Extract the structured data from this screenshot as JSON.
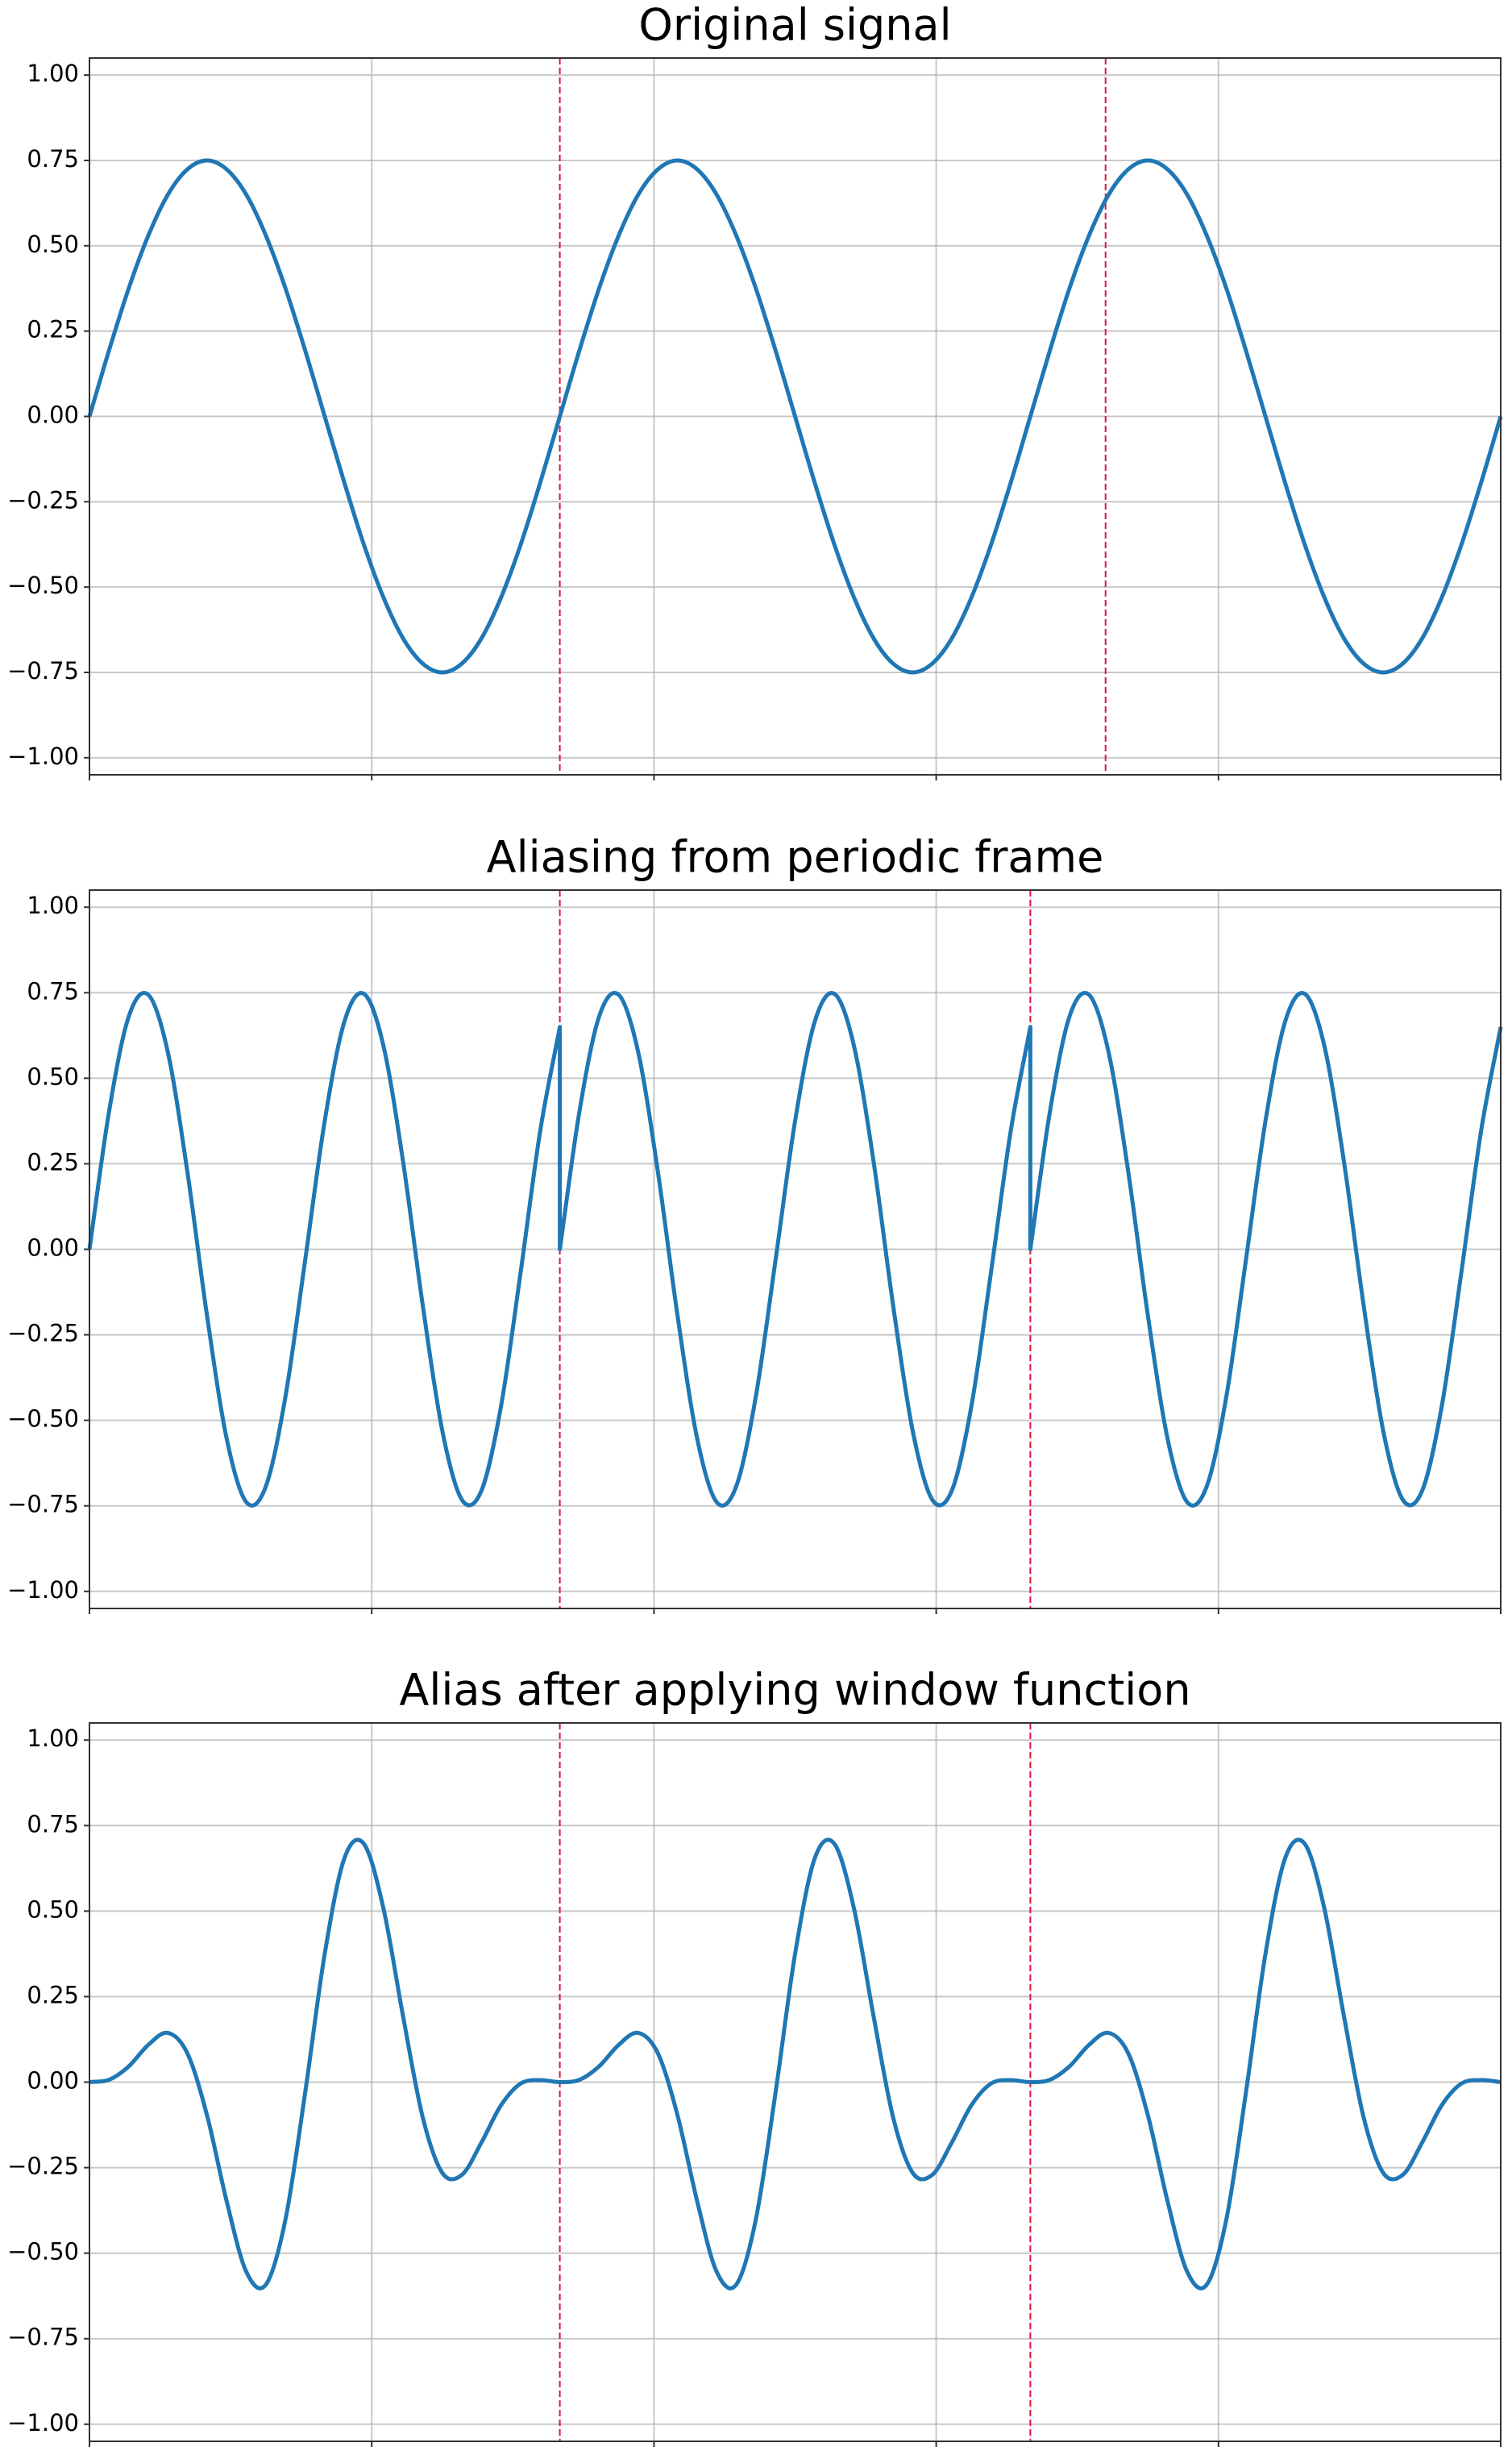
{
  "chart_data": [
    {
      "type": "line",
      "title": "Original signal",
      "color": "#1f77b4",
      "grid": true,
      "xlim": [
        0,
        1
      ],
      "xticks": [
        0,
        0.2,
        0.4,
        0.6,
        0.8,
        1
      ],
      "ylim": [
        -1.05,
        1.05
      ],
      "yticks": [
        {
          "value": -1,
          "label": "−1.00"
        },
        {
          "value": -0.75,
          "label": "−0.75"
        },
        {
          "value": -0.5,
          "label": "−0.50"
        },
        {
          "value": -0.25,
          "label": "−0.25"
        },
        {
          "value": 0,
          "label": "0.00"
        },
        {
          "value": 0.25,
          "label": "0.25"
        },
        {
          "value": 0.5,
          "label": "0.50"
        },
        {
          "value": 0.75,
          "label": "0.75"
        },
        {
          "value": 1,
          "label": "1.00"
        }
      ],
      "vlines": [
        0.3333,
        0.72
      ],
      "vline_color": "#dc143c",
      "x": [
        0,
        0.0139,
        0.0278,
        0.0417,
        0.0556,
        0.0694,
        0.0833,
        0.0972,
        0.1111,
        0.125,
        0.1389,
        0.1528,
        0.1667,
        0.1806,
        0.1944,
        0.2083,
        0.2222,
        0.2361,
        0.25,
        0.2639,
        0.2778,
        0.2917,
        0.3056,
        0.3194,
        0.3333,
        0.3472,
        0.3611,
        0.375,
        0.3889,
        0.4028,
        0.4167,
        0.4306,
        0.4444,
        0.4583,
        0.4722,
        0.4861,
        0.5,
        0.5139,
        0.5278,
        0.5417,
        0.5556,
        0.5694,
        0.5833,
        0.5972,
        0.6111,
        0.625,
        0.6389,
        0.6528,
        0.6667,
        0.6806,
        0.6944,
        0.7083,
        0.7222,
        0.7361,
        0.75,
        0.7639,
        0.7778,
        0.7917,
        0.8056,
        0.8194,
        0.8333,
        0.8472,
        0.8611,
        0.875,
        0.8889,
        0.9028,
        0.9167,
        0.9306,
        0.9444,
        0.9583,
        0.9722,
        0.9861,
        1
      ],
      "values": [
        0,
        0.194,
        0.375,
        0.53,
        0.65,
        0.724,
        0.75,
        0.724,
        0.65,
        0.53,
        0.375,
        0.194,
        0,
        -0.194,
        -0.375,
        -0.53,
        -0.65,
        -0.724,
        -0.75,
        -0.724,
        -0.65,
        -0.53,
        -0.375,
        -0.194,
        0,
        0.194,
        0.375,
        0.53,
        0.65,
        0.724,
        0.75,
        0.724,
        0.65,
        0.53,
        0.375,
        0.194,
        0,
        -0.194,
        -0.375,
        -0.53,
        -0.65,
        -0.724,
        -0.75,
        -0.724,
        -0.65,
        -0.53,
        -0.375,
        -0.194,
        0,
        0.194,
        0.375,
        0.53,
        0.65,
        0.724,
        0.75,
        0.724,
        0.65,
        0.53,
        0.375,
        0.194,
        0,
        -0.194,
        -0.375,
        -0.53,
        -0.65,
        -0.724,
        -0.75,
        -0.724,
        -0.65,
        -0.53,
        -0.375,
        -0.194,
        0
      ]
    },
    {
      "type": "line",
      "title": "Aliasing from periodic frame",
      "color": "#1f77b4",
      "grid": true,
      "xlim": [
        0,
        1
      ],
      "xticks": [
        0,
        0.2,
        0.4,
        0.6,
        0.8,
        1
      ],
      "ylim": [
        -1.05,
        1.05
      ],
      "yticks": [
        {
          "value": -1,
          "label": "−1.00"
        },
        {
          "value": -0.75,
          "label": "−0.75"
        },
        {
          "value": -0.5,
          "label": "−0.50"
        },
        {
          "value": -0.25,
          "label": "−0.25"
        },
        {
          "value": 0,
          "label": "0.00"
        },
        {
          "value": 0.25,
          "label": "0.25"
        },
        {
          "value": 0.5,
          "label": "0.50"
        },
        {
          "value": 0.75,
          "label": "0.75"
        },
        {
          "value": 1,
          "label": "1.00"
        }
      ],
      "vlines": [
        0.3333,
        0.6667
      ],
      "vline_color": "#dc143c",
      "x": [
        0,
        0.0139,
        0.0278,
        0.0417,
        0.0556,
        0.0694,
        0.0833,
        0.0972,
        0.1111,
        0.125,
        0.1389,
        0.1528,
        0.1667,
        0.1806,
        0.1944,
        0.2083,
        0.2222,
        0.2361,
        0.25,
        0.2639,
        0.2778,
        0.2917,
        0.3056,
        0.3194,
        0.3333,
        0.3333,
        0.3472,
        0.3611,
        0.375,
        0.3889,
        0.4028,
        0.4167,
        0.4306,
        0.4444,
        0.4583,
        0.4722,
        0.4861,
        0.5,
        0.5139,
        0.5278,
        0.5417,
        0.5556,
        0.5694,
        0.5833,
        0.5972,
        0.6111,
        0.625,
        0.6389,
        0.6528,
        0.6667,
        0.6667,
        0.6806,
        0.6944,
        0.7083,
        0.7222,
        0.7361,
        0.75,
        0.7639,
        0.7778,
        0.7917,
        0.8056,
        0.8194,
        0.8333,
        0.8472,
        0.8611,
        0.875,
        0.8889,
        0.9028,
        0.9167,
        0.9306,
        0.9444,
        0.9583,
        0.9722,
        0.9861,
        1
      ],
      "values": [
        0,
        0.403,
        0.68,
        0.744,
        0.575,
        0.226,
        -0.194,
        -0.553,
        -0.739,
        -0.693,
        -0.43,
        -0.033,
        0.375,
        0.665,
        0.747,
        0.595,
        0.257,
        -0.162,
        -0.53,
        -0.732,
        -0.705,
        -0.457,
        -0.065,
        0.346,
        0.65,
        0,
        0.403,
        0.68,
        0.744,
        0.575,
        0.226,
        -0.194,
        -0.553,
        -0.739,
        -0.693,
        -0.43,
        -0.033,
        0.375,
        0.665,
        0.747,
        0.595,
        0.257,
        -0.162,
        -0.53,
        -0.732,
        -0.705,
        -0.457,
        -0.065,
        0.346,
        0.65,
        0,
        0.403,
        0.68,
        0.744,
        0.575,
        0.226,
        -0.194,
        -0.553,
        -0.739,
        -0.693,
        -0.43,
        -0.033,
        0.375,
        0.665,
        0.747,
        0.595,
        0.257,
        -0.162,
        -0.53,
        -0.732,
        -0.705,
        -0.457,
        -0.065,
        0.346,
        0.65
      ]
    },
    {
      "type": "line",
      "title": "Alias after applying window function",
      "color": "#1f77b4",
      "grid": true,
      "xlim": [
        0,
        1
      ],
      "xticks": [
        0,
        0.2,
        0.4,
        0.6,
        0.8,
        1
      ],
      "ylim": [
        -1.05,
        1.05
      ],
      "yticks": [
        {
          "value": -1,
          "label": "−1.00"
        },
        {
          "value": -0.75,
          "label": "−0.75"
        },
        {
          "value": -0.5,
          "label": "−0.50"
        },
        {
          "value": -0.25,
          "label": "−0.25"
        },
        {
          "value": 0,
          "label": "0.00"
        },
        {
          "value": 0.25,
          "label": "0.25"
        },
        {
          "value": 0.5,
          "label": "0.50"
        },
        {
          "value": 0.75,
          "label": "0.75"
        },
        {
          "value": 1,
          "label": "1.00"
        }
      ],
      "vlines": [
        0.3333,
        0.6667
      ],
      "vline_color": "#dc143c",
      "x": [
        0,
        0.0139,
        0.0278,
        0.0417,
        0.0556,
        0.0694,
        0.0833,
        0.0972,
        0.1111,
        0.125,
        0.1389,
        0.1528,
        0.1667,
        0.1806,
        0.1944,
        0.2083,
        0.2222,
        0.2361,
        0.25,
        0.2639,
        0.2778,
        0.2917,
        0.3056,
        0.3194,
        0.3333,
        0.3472,
        0.3611,
        0.375,
        0.3889,
        0.4028,
        0.4167,
        0.4306,
        0.4444,
        0.4583,
        0.4722,
        0.4861,
        0.5,
        0.5139,
        0.5278,
        0.5417,
        0.5556,
        0.5694,
        0.5833,
        0.5972,
        0.6111,
        0.625,
        0.6389,
        0.6528,
        0.6667,
        0.6806,
        0.6944,
        0.7083,
        0.7222,
        0.7361,
        0.75,
        0.7639,
        0.7778,
        0.7917,
        0.8056,
        0.8194,
        0.8333,
        0.8472,
        0.8611,
        0.875,
        0.8889,
        0.9028,
        0.9167,
        0.9306,
        0.9444,
        0.9583,
        0.9722,
        0.9861,
        1
      ],
      "values": [
        0,
        0.007,
        0.046,
        0.109,
        0.144,
        0.084,
        -0.097,
        -0.348,
        -0.554,
        -0.592,
        -0.401,
        -0.032,
        0.375,
        0.654,
        0.697,
        0.508,
        0.193,
        -0.102,
        -0.265,
        -0.271,
        -0.176,
        -0.067,
        -0.004,
        0.006,
        0,
        0.007,
        0.046,
        0.109,
        0.144,
        0.084,
        -0.097,
        -0.348,
        -0.554,
        -0.592,
        -0.401,
        -0.032,
        0.375,
        0.654,
        0.697,
        0.508,
        0.193,
        -0.102,
        -0.265,
        -0.271,
        -0.176,
        -0.067,
        -0.004,
        0.006,
        0,
        0.007,
        0.046,
        0.109,
        0.144,
        0.084,
        -0.097,
        -0.348,
        -0.554,
        -0.592,
        -0.401,
        -0.032,
        0.375,
        0.654,
        0.697,
        0.508,
        0.193,
        -0.102,
        -0.265,
        -0.271,
        -0.176,
        -0.067,
        -0.004,
        0.006,
        0
      ]
    }
  ]
}
